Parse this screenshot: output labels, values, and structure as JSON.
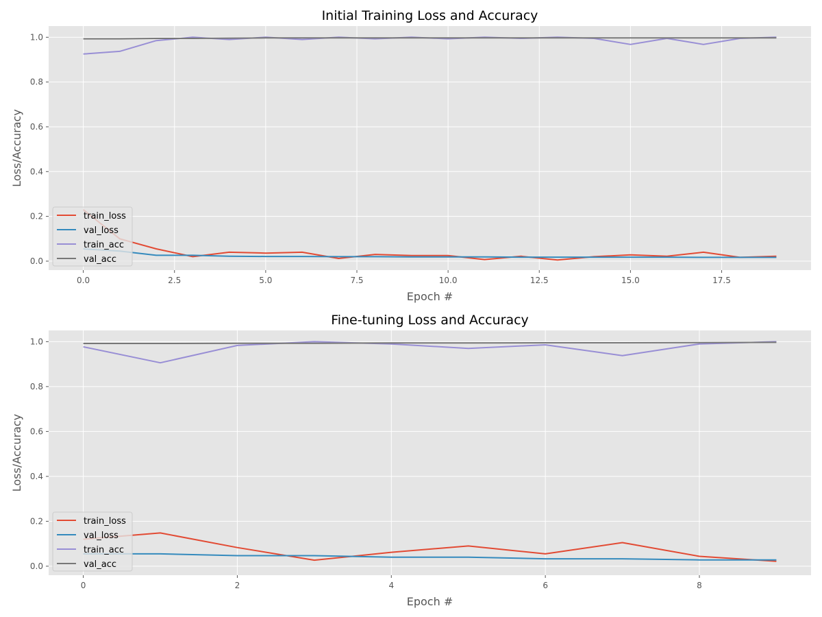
{
  "chart_data": [
    {
      "type": "line",
      "title": "Initial Training Loss and Accuracy",
      "xlabel": "Epoch #",
      "ylabel": "Loss/Accuracy",
      "x": [
        0,
        1,
        2,
        3,
        4,
        5,
        6,
        7,
        8,
        9,
        10,
        11,
        12,
        13,
        14,
        15,
        16,
        17,
        18,
        19
      ],
      "xlim": [
        -0.95,
        19.95
      ],
      "ylim": [
        -0.04,
        1.05
      ],
      "xticks": [
        0.0,
        2.5,
        5.0,
        7.5,
        10.0,
        12.5,
        15.0,
        17.5
      ],
      "xtick_labels": [
        "0.0",
        "2.5",
        "5.0",
        "7.5",
        "10.0",
        "12.5",
        "15.0",
        "17.5"
      ],
      "yticks": [
        0.0,
        0.2,
        0.4,
        0.6,
        0.8,
        1.0
      ],
      "ytick_labels": [
        "0.0",
        "0.2",
        "0.4",
        "0.6",
        "0.8",
        "1.0"
      ],
      "grid": true,
      "legend_position": "lower-left",
      "series": [
        {
          "name": "train_loss",
          "color": "#e24a33",
          "values": [
            0.23,
            0.1,
            0.055,
            0.02,
            0.04,
            0.036,
            0.04,
            0.012,
            0.03,
            0.025,
            0.025,
            0.007,
            0.022,
            0.005,
            0.02,
            0.028,
            0.022,
            0.04,
            0.017,
            0.022
          ]
        },
        {
          "name": "val_loss",
          "color": "#348abd",
          "values": [
            0.055,
            0.045,
            0.026,
            0.026,
            0.022,
            0.021,
            0.021,
            0.02,
            0.02,
            0.019,
            0.019,
            0.019,
            0.018,
            0.018,
            0.018,
            0.018,
            0.018,
            0.017,
            0.017,
            0.017
          ]
        },
        {
          "name": "train_acc",
          "color": "#988ed5",
          "values": [
            0.925,
            0.937,
            0.985,
            1.0,
            0.99,
            1.0,
            0.99,
            1.0,
            0.993,
            1.0,
            0.993,
            1.0,
            0.995,
            1.0,
            0.995,
            0.968,
            0.995,
            0.968,
            0.995,
            1.0
          ]
        },
        {
          "name": "val_acc",
          "color": "#777777",
          "values": [
            0.993,
            0.993,
            0.995,
            0.995,
            0.996,
            0.997,
            0.997,
            0.997,
            0.997,
            0.997,
            0.997,
            0.997,
            0.997,
            0.997,
            0.997,
            0.997,
            0.997,
            0.997,
            0.997,
            0.997
          ]
        }
      ]
    },
    {
      "type": "line",
      "title": "Fine-tuning Loss and Accuracy",
      "xlabel": "Epoch #",
      "ylabel": "Loss/Accuracy",
      "x": [
        0,
        1,
        2,
        3,
        4,
        5,
        6,
        7,
        8,
        9
      ],
      "xlim": [
        -0.45,
        9.45
      ],
      "ylim": [
        -0.04,
        1.05
      ],
      "xticks": [
        0,
        2,
        4,
        6,
        8
      ],
      "xtick_labels": [
        "0",
        "2",
        "4",
        "6",
        "8"
      ],
      "yticks": [
        0.0,
        0.2,
        0.4,
        0.6,
        0.8,
        1.0
      ],
      "ytick_labels": [
        "0.0",
        "0.2",
        "0.4",
        "0.6",
        "0.8",
        "1.0"
      ],
      "grid": true,
      "legend_position": "lower-left",
      "series": [
        {
          "name": "train_loss",
          "color": "#e24a33",
          "values": [
            0.12,
            0.148,
            0.083,
            0.027,
            0.062,
            0.09,
            0.055,
            0.105,
            0.044,
            0.022
          ]
        },
        {
          "name": "val_loss",
          "color": "#348abd",
          "values": [
            0.055,
            0.055,
            0.047,
            0.047,
            0.04,
            0.04,
            0.033,
            0.033,
            0.028,
            0.028
          ]
        },
        {
          "name": "train_acc",
          "color": "#988ed5",
          "values": [
            0.977,
            0.906,
            0.983,
            1.0,
            0.99,
            0.97,
            0.986,
            0.938,
            0.99,
            1.0
          ]
        },
        {
          "name": "val_acc",
          "color": "#777777",
          "values": [
            0.992,
            0.992,
            0.993,
            0.993,
            0.994,
            0.994,
            0.995,
            0.995,
            0.996,
            0.997
          ]
        }
      ]
    }
  ]
}
